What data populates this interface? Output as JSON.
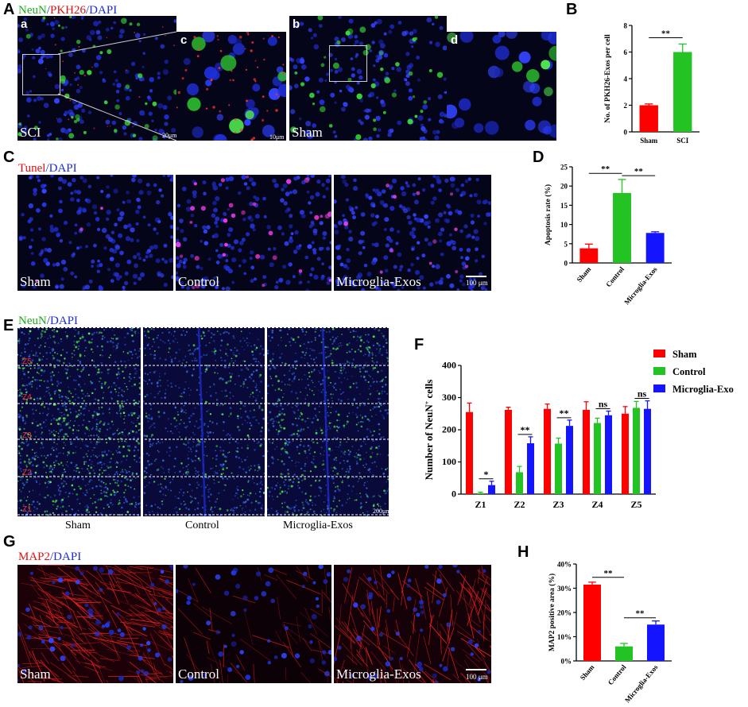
{
  "panels": {
    "A": {
      "letter": "A",
      "title": [
        {
          "text": "NeuN",
          "color": "#1faa1f"
        },
        {
          "text": "/",
          "color": "#1e2bd6"
        },
        {
          "text": "PKH26",
          "color": "#e01010"
        },
        {
          "text": "/DAPI",
          "color": "#1e2bd6"
        }
      ],
      "sub_a": "a",
      "sub_b": "b",
      "sub_c": "c",
      "sub_d": "d",
      "label_a": "SCI",
      "label_b": "Sham",
      "scale_a": "20μm",
      "scale_c": "10μm"
    },
    "B": {
      "letter": "B"
    },
    "C": {
      "letter": "C",
      "title": [
        {
          "text": "Tunel",
          "color": "#e01010"
        },
        {
          "text": "/DAPI",
          "color": "#1e2bd6"
        }
      ],
      "labels": [
        "Sham",
        "Control",
        "Microglia-Exos"
      ],
      "scale": "100 μm"
    },
    "D": {
      "letter": "D"
    },
    "E": {
      "letter": "E",
      "title": [
        {
          "text": "NeuN",
          "color": "#1faa1f"
        },
        {
          "text": "/DAPI",
          "color": "#1e2bd6"
        }
      ],
      "labels": [
        "Sham",
        "Control",
        "Microglia-Exos"
      ],
      "zones": [
        "Z5",
        "Z4",
        "Z3",
        "Z2",
        "Z1"
      ],
      "scale": "200μm"
    },
    "F": {
      "letter": "F"
    },
    "G": {
      "letter": "G",
      "title": [
        {
          "text": "MAP2",
          "color": "#e01010"
        },
        {
          "text": "/DAPI",
          "color": "#1e2bd6"
        }
      ],
      "labels": [
        "Sham",
        "Control",
        "Microglia-Exos"
      ],
      "scale": "100 μm"
    },
    "H": {
      "letter": "H"
    }
  },
  "colors": {
    "red": "#ff0000",
    "green": "#22c322",
    "blue": "#1414ff"
  },
  "chart_data": [
    {
      "id": "B",
      "type": "bar",
      "categories": [
        "Sham",
        "SCI"
      ],
      "values": [
        2.0,
        6.0
      ],
      "errors": [
        0.1,
        0.6
      ],
      "bar_colors": [
        "#ff0000",
        "#22c322"
      ],
      "ylabel": "No. of PKH26-Exos per cell",
      "ylim": [
        0,
        8
      ],
      "yticks": [
        "0",
        "2",
        "4",
        "6",
        "8"
      ],
      "significance": [
        {
          "pair": [
            0,
            1
          ],
          "label": "**"
        }
      ]
    },
    {
      "id": "D",
      "type": "bar",
      "categories": [
        "Sham",
        "Control",
        "Microglia-Exos"
      ],
      "values": [
        3.8,
        18.2,
        7.8
      ],
      "errors": [
        1.1,
        3.5,
        0.3
      ],
      "bar_colors": [
        "#ff0000",
        "#22c322",
        "#1414ff"
      ],
      "ylabel": "Apoptosis rate (%)",
      "ylim": [
        0,
        25
      ],
      "yticks": [
        "0",
        "5",
        "10",
        "15",
        "20",
        "25"
      ],
      "significance": [
        {
          "pair": [
            0,
            1
          ],
          "label": "**"
        },
        {
          "pair": [
            1,
            2
          ],
          "label": "**"
        }
      ]
    },
    {
      "id": "F",
      "type": "bar",
      "categories": [
        "Z1",
        "Z2",
        "Z3",
        "Z4",
        "Z5"
      ],
      "series": [
        {
          "name": "Sham",
          "color": "#ff0000",
          "values": [
            255,
            262,
            265,
            262,
            250
          ],
          "errors": [
            28,
            8,
            15,
            25,
            22
          ]
        },
        {
          "name": "Control",
          "color": "#22c322",
          "values": [
            3,
            68,
            157,
            221,
            268
          ],
          "errors": [
            3,
            18,
            17,
            15,
            20
          ]
        },
        {
          "name": "Microglia-Exo",
          "color": "#1414ff",
          "values": [
            28,
            158,
            212,
            245,
            265
          ],
          "errors": [
            12,
            20,
            18,
            13,
            25
          ]
        }
      ],
      "ylabel_main": "Number of NeuN",
      "ylabel_sup": "+",
      "ylabel_tail": " cells",
      "ylim": [
        0,
        400
      ],
      "yticks": [
        "0",
        "100",
        "200",
        "300",
        "400"
      ],
      "significance": [
        {
          "group": 0,
          "label": "*"
        },
        {
          "group": 1,
          "label": "**"
        },
        {
          "group": 2,
          "label": "**"
        },
        {
          "group": 3,
          "label": "ns"
        },
        {
          "group": 4,
          "label": "ns"
        }
      ]
    },
    {
      "id": "H",
      "type": "bar",
      "categories": [
        "Sham",
        "Control",
        "Microglia-Exos"
      ],
      "values": [
        31.5,
        6.0,
        15.0
      ],
      "errors": [
        1.0,
        1.2,
        1.5
      ],
      "bar_colors": [
        "#ff0000",
        "#22c322",
        "#1414ff"
      ],
      "ylabel": "MAP2 positive area (%)",
      "ylim": [
        0,
        40
      ],
      "yticks": [
        "0%",
        "10%",
        "20%",
        "30%",
        "40%"
      ],
      "significance": [
        {
          "pair": [
            0,
            1
          ],
          "label": "**"
        },
        {
          "pair": [
            1,
            2
          ],
          "label": "**"
        }
      ]
    }
  ]
}
